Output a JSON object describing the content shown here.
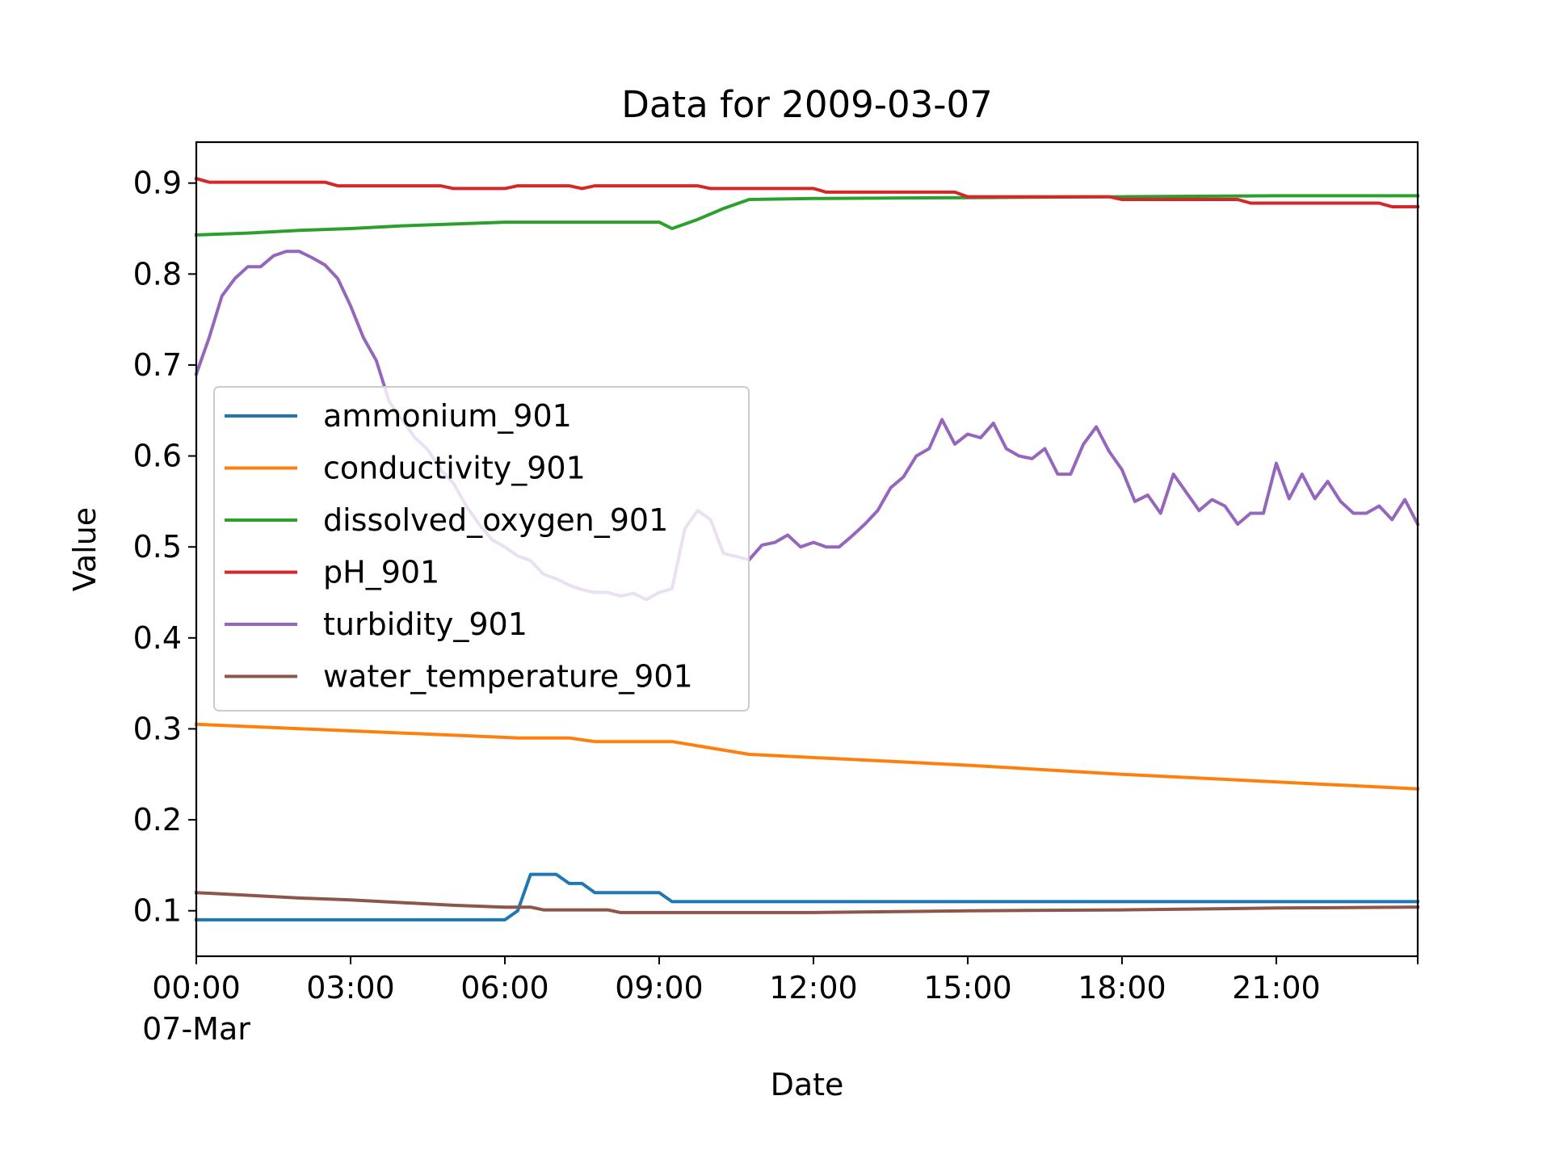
{
  "chart_data": {
    "type": "line",
    "title": "Data for 2009-03-07",
    "xlabel": "Date",
    "ylabel": "Value",
    "x_unit": "hours",
    "xlim": [
      "2009-03-07 00:00",
      "2009-03-07 23:45"
    ],
    "ylim": [
      0.05,
      0.945
    ],
    "x_ticks": [
      {
        "x": "2009-03-07 00:00",
        "label": "00:00",
        "sublabel": "07-Mar"
      },
      {
        "x": "2009-03-07 03:00",
        "label": "03:00"
      },
      {
        "x": "2009-03-07 06:00",
        "label": "06:00"
      },
      {
        "x": "2009-03-07 09:00",
        "label": "09:00"
      },
      {
        "x": "2009-03-07 12:00",
        "label": "12:00"
      },
      {
        "x": "2009-03-07 15:00",
        "label": "15:00"
      },
      {
        "x": "2009-03-07 18:00",
        "label": "18:00"
      },
      {
        "x": "2009-03-07 21:00",
        "label": "21:00"
      }
    ],
    "y_ticks": [
      {
        "y": 0.1,
        "label": "0.1"
      },
      {
        "y": 0.2,
        "label": "0.2"
      },
      {
        "y": 0.3,
        "label": "0.3"
      },
      {
        "y": 0.4,
        "label": "0.4"
      },
      {
        "y": 0.5,
        "label": "0.5"
      },
      {
        "y": 0.6,
        "label": "0.6"
      },
      {
        "y": 0.7,
        "label": "0.7"
      },
      {
        "y": 0.8,
        "label": "0.8"
      },
      {
        "y": 0.9,
        "label": "0.9"
      }
    ],
    "grid": false,
    "legend_position": "center-left",
    "series": [
      {
        "name": "ammonium_901",
        "color": "#1f77b4",
        "points": [
          [
            "2009-03-07 00:00",
            0.09
          ],
          [
            "2009-03-07 06:00",
            0.09
          ],
          [
            "2009-03-07 06:15",
            0.1
          ],
          [
            "2009-03-07 06:30",
            0.14
          ],
          [
            "2009-03-07 07:00",
            0.14
          ],
          [
            "2009-03-07 07:15",
            0.13
          ],
          [
            "2009-03-07 07:30",
            0.13
          ],
          [
            "2009-03-07 07:45",
            0.12
          ],
          [
            "2009-03-07 09:00",
            0.12
          ],
          [
            "2009-03-07 09:15",
            0.11
          ],
          [
            "2009-03-07 23:45",
            0.11
          ]
        ]
      },
      {
        "name": "conductivity_901",
        "color": "#ff7f0e",
        "points": [
          [
            "2009-03-07 00:00",
            0.305
          ],
          [
            "2009-03-07 06:15",
            0.29
          ],
          [
            "2009-03-07 07:15",
            0.29
          ],
          [
            "2009-03-07 07:30",
            0.288
          ],
          [
            "2009-03-07 07:45",
            0.286
          ],
          [
            "2009-03-07 09:15",
            0.286
          ],
          [
            "2009-03-07 10:45",
            0.272
          ],
          [
            "2009-03-07 15:00",
            0.26
          ],
          [
            "2009-03-07 18:00",
            0.25
          ],
          [
            "2009-03-07 23:45",
            0.234
          ]
        ]
      },
      {
        "name": "dissolved_oxygen_901",
        "color": "#2ca02c",
        "points": [
          [
            "2009-03-07 00:00",
            0.843
          ],
          [
            "2009-03-07 01:00",
            0.845
          ],
          [
            "2009-03-07 02:00",
            0.848
          ],
          [
            "2009-03-07 03:00",
            0.85
          ],
          [
            "2009-03-07 04:00",
            0.853
          ],
          [
            "2009-03-07 05:00",
            0.855
          ],
          [
            "2009-03-07 06:00",
            0.857
          ],
          [
            "2009-03-07 09:00",
            0.857
          ],
          [
            "2009-03-07 09:15",
            0.85
          ],
          [
            "2009-03-07 09:45",
            0.86
          ],
          [
            "2009-03-07 10:15",
            0.872
          ],
          [
            "2009-03-07 10:45",
            0.882
          ],
          [
            "2009-03-07 12:00",
            0.883
          ],
          [
            "2009-03-07 15:00",
            0.884
          ],
          [
            "2009-03-07 18:00",
            0.885
          ],
          [
            "2009-03-07 21:00",
            0.886
          ],
          [
            "2009-03-07 23:45",
            0.886
          ]
        ]
      },
      {
        "name": "pH_901",
        "color": "#d62728",
        "points": [
          [
            "2009-03-07 00:00",
            0.905
          ],
          [
            "2009-03-07 00:15",
            0.901
          ],
          [
            "2009-03-07 02:30",
            0.901
          ],
          [
            "2009-03-07 02:45",
            0.897
          ],
          [
            "2009-03-07 04:45",
            0.897
          ],
          [
            "2009-03-07 05:00",
            0.894
          ],
          [
            "2009-03-07 06:00",
            0.894
          ],
          [
            "2009-03-07 06:15",
            0.897
          ],
          [
            "2009-03-07 07:15",
            0.897
          ],
          [
            "2009-03-07 07:30",
            0.894
          ],
          [
            "2009-03-07 07:45",
            0.897
          ],
          [
            "2009-03-07 09:45",
            0.897
          ],
          [
            "2009-03-07 10:00",
            0.894
          ],
          [
            "2009-03-07 12:00",
            0.894
          ],
          [
            "2009-03-07 12:15",
            0.89
          ],
          [
            "2009-03-07 14:45",
            0.89
          ],
          [
            "2009-03-07 15:00",
            0.885
          ],
          [
            "2009-03-07 17:45",
            0.885
          ],
          [
            "2009-03-07 18:00",
            0.882
          ],
          [
            "2009-03-07 20:15",
            0.882
          ],
          [
            "2009-03-07 20:30",
            0.878
          ],
          [
            "2009-03-07 23:00",
            0.878
          ],
          [
            "2009-03-07 23:15",
            0.874
          ],
          [
            "2009-03-07 23:45",
            0.874
          ]
        ]
      },
      {
        "name": "turbidity_901",
        "color": "#9467bd",
        "points": [
          [
            "2009-03-07 00:00",
            0.69
          ],
          [
            "2009-03-07 00:15",
            0.73
          ],
          [
            "2009-03-07 00:30",
            0.776
          ],
          [
            "2009-03-07 00:45",
            0.795
          ],
          [
            "2009-03-07 01:00",
            0.808
          ],
          [
            "2009-03-07 01:15",
            0.808
          ],
          [
            "2009-03-07 01:30",
            0.82
          ],
          [
            "2009-03-07 01:45",
            0.825
          ],
          [
            "2009-03-07 02:00",
            0.825
          ],
          [
            "2009-03-07 02:15",
            0.818
          ],
          [
            "2009-03-07 02:30",
            0.81
          ],
          [
            "2009-03-07 02:45",
            0.795
          ],
          [
            "2009-03-07 03:00",
            0.765
          ],
          [
            "2009-03-07 03:15",
            0.73
          ],
          [
            "2009-03-07 03:30",
            0.705
          ],
          [
            "2009-03-07 03:45",
            0.66
          ],
          [
            "2009-03-07 04:00",
            0.64
          ],
          [
            "2009-03-07 04:15",
            0.62
          ],
          [
            "2009-03-07 04:30",
            0.607
          ],
          [
            "2009-03-07 04:45",
            0.585
          ],
          [
            "2009-03-07 05:00",
            0.57
          ],
          [
            "2009-03-07 05:15",
            0.545
          ],
          [
            "2009-03-07 05:30",
            0.525
          ],
          [
            "2009-03-07 05:45",
            0.508
          ],
          [
            "2009-03-07 06:00",
            0.5
          ],
          [
            "2009-03-07 06:15",
            0.49
          ],
          [
            "2009-03-07 06:30",
            0.485
          ],
          [
            "2009-03-07 06:45",
            0.47
          ],
          [
            "2009-03-07 07:00",
            0.465
          ],
          [
            "2009-03-07 07:15",
            0.458
          ],
          [
            "2009-03-07 07:30",
            0.453
          ],
          [
            "2009-03-07 07:45",
            0.45
          ],
          [
            "2009-03-07 08:00",
            0.45
          ],
          [
            "2009-03-07 08:15",
            0.446
          ],
          [
            "2009-03-07 08:30",
            0.449
          ],
          [
            "2009-03-07 08:45",
            0.442
          ],
          [
            "2009-03-07 09:00",
            0.45
          ],
          [
            "2009-03-07 09:15",
            0.454
          ],
          [
            "2009-03-07 09:30",
            0.52
          ],
          [
            "2009-03-07 09:45",
            0.54
          ],
          [
            "2009-03-07 10:00",
            0.53
          ],
          [
            "2009-03-07 10:15",
            0.493
          ],
          [
            "2009-03-07 10:45",
            0.486
          ],
          [
            "2009-03-07 11:00",
            0.502
          ],
          [
            "2009-03-07 11:15",
            0.505
          ],
          [
            "2009-03-07 11:30",
            0.513
          ],
          [
            "2009-03-07 11:45",
            0.5
          ],
          [
            "2009-03-07 12:00",
            0.505
          ],
          [
            "2009-03-07 12:15",
            0.5
          ],
          [
            "2009-03-07 12:30",
            0.5
          ],
          [
            "2009-03-07 12:45",
            0.512
          ],
          [
            "2009-03-07 13:00",
            0.525
          ],
          [
            "2009-03-07 13:15",
            0.54
          ],
          [
            "2009-03-07 13:30",
            0.565
          ],
          [
            "2009-03-07 13:45",
            0.577
          ],
          [
            "2009-03-07 14:00",
            0.6
          ],
          [
            "2009-03-07 14:15",
            0.608
          ],
          [
            "2009-03-07 14:30",
            0.64
          ],
          [
            "2009-03-07 14:45",
            0.613
          ],
          [
            "2009-03-07 15:00",
            0.624
          ],
          [
            "2009-03-07 15:15",
            0.62
          ],
          [
            "2009-03-07 15:30",
            0.636
          ],
          [
            "2009-03-07 15:45",
            0.608
          ],
          [
            "2009-03-07 16:00",
            0.6
          ],
          [
            "2009-03-07 16:15",
            0.597
          ],
          [
            "2009-03-07 16:30",
            0.608
          ],
          [
            "2009-03-07 16:45",
            0.58
          ],
          [
            "2009-03-07 17:00",
            0.58
          ],
          [
            "2009-03-07 17:15",
            0.613
          ],
          [
            "2009-03-07 17:30",
            0.632
          ],
          [
            "2009-03-07 17:45",
            0.605
          ],
          [
            "2009-03-07 18:00",
            0.585
          ],
          [
            "2009-03-07 18:15",
            0.55
          ],
          [
            "2009-03-07 18:30",
            0.557
          ],
          [
            "2009-03-07 18:45",
            0.537
          ],
          [
            "2009-03-07 19:00",
            0.58
          ],
          [
            "2009-03-07 19:15",
            0.56
          ],
          [
            "2009-03-07 19:30",
            0.54
          ],
          [
            "2009-03-07 19:45",
            0.552
          ],
          [
            "2009-03-07 20:00",
            0.545
          ],
          [
            "2009-03-07 20:15",
            0.525
          ],
          [
            "2009-03-07 20:30",
            0.537
          ],
          [
            "2009-03-07 20:45",
            0.537
          ],
          [
            "2009-03-07 21:00",
            0.592
          ],
          [
            "2009-03-07 21:15",
            0.553
          ],
          [
            "2009-03-07 21:30",
            0.58
          ],
          [
            "2009-03-07 21:45",
            0.553
          ],
          [
            "2009-03-07 22:00",
            0.572
          ],
          [
            "2009-03-07 22:15",
            0.55
          ],
          [
            "2009-03-07 22:30",
            0.537
          ],
          [
            "2009-03-07 22:45",
            0.537
          ],
          [
            "2009-03-07 23:00",
            0.545
          ],
          [
            "2009-03-07 23:15",
            0.53
          ],
          [
            "2009-03-07 23:30",
            0.552
          ],
          [
            "2009-03-07 23:45",
            0.525
          ]
        ]
      },
      {
        "name": "water_temperature_901",
        "color": "#8c564b",
        "points": [
          [
            "2009-03-07 00:00",
            0.12
          ],
          [
            "2009-03-07 01:00",
            0.117
          ],
          [
            "2009-03-07 02:00",
            0.114
          ],
          [
            "2009-03-07 03:00",
            0.112
          ],
          [
            "2009-03-07 04:00",
            0.109
          ],
          [
            "2009-03-07 05:00",
            0.106
          ],
          [
            "2009-03-07 06:00",
            0.104
          ],
          [
            "2009-03-07 06:30",
            0.104
          ],
          [
            "2009-03-07 06:45",
            0.101
          ],
          [
            "2009-03-07 08:00",
            0.101
          ],
          [
            "2009-03-07 08:15",
            0.098
          ],
          [
            "2009-03-07 12:00",
            0.098
          ],
          [
            "2009-03-07 15:00",
            0.1
          ],
          [
            "2009-03-07 18:00",
            0.101
          ],
          [
            "2009-03-07 21:00",
            0.103
          ],
          [
            "2009-03-07 23:45",
            0.104
          ]
        ]
      }
    ]
  }
}
